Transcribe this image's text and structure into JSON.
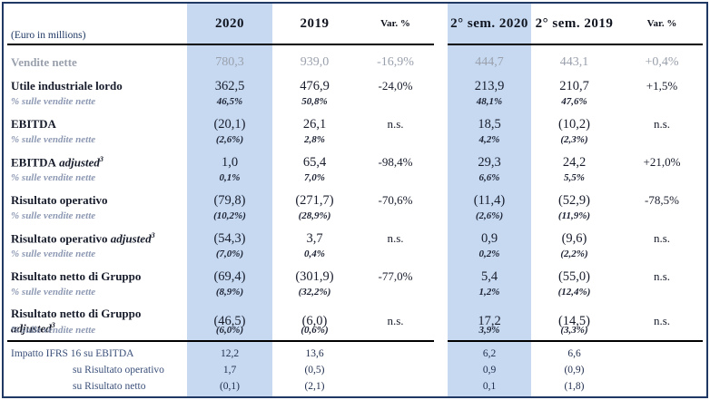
{
  "unit_label": "(Euro in millions)",
  "columns": [
    "2020",
    "2019",
    "Var. %",
    "2° sem. 2020",
    "2° sem. 2019",
    "Var. %"
  ],
  "colors": {
    "highlight_band": "#c6d9f1",
    "outer_border": "#1f3864",
    "rule_line": "#000000",
    "gray_row_text": "#9aa1ad",
    "pct_label_text": "#8d99b3",
    "ifrs_text": "#3a4f79",
    "main_text": "#181d2c"
  },
  "rows": [
    {
      "kind": "gray",
      "label": "Vendite nette",
      "values": [
        "780,3",
        "939,0",
        "-16,9%",
        "444,7",
        "443,1",
        "+0,4%"
      ]
    },
    {
      "kind": "main",
      "label": "Utile industriale lordo",
      "values": [
        "362,5",
        "476,9",
        "-24,0%",
        "213,9",
        "210,7",
        "+1,5%"
      ]
    },
    {
      "kind": "pct",
      "label": "% sulle vendite nette",
      "values": [
        "46,5%",
        "50,8%",
        "",
        "48,1%",
        "47,6%",
        ""
      ]
    },
    {
      "kind": "main",
      "label": "EBITDA",
      "values": [
        "(20,1)",
        "26,1",
        "n.s.",
        "18,5",
        "(10,2)",
        "n.s."
      ]
    },
    {
      "kind": "pct",
      "label": "% sulle vendite nette",
      "values": [
        "(2,6%)",
        "2,8%",
        "",
        "4,2%",
        "(2,3%)",
        ""
      ]
    },
    {
      "kind": "main",
      "label": "EBITDA",
      "italic_suffix": "adjusted",
      "sup": "3",
      "values": [
        "1,0",
        "65,4",
        "-98,4%",
        "29,3",
        "24,2",
        "+21,0%"
      ]
    },
    {
      "kind": "pct",
      "label": "% sulle vendite nette",
      "values": [
        "0,1%",
        "7,0%",
        "",
        "6,6%",
        "5,5%",
        ""
      ]
    },
    {
      "kind": "main",
      "label": "Risultato operativo",
      "values": [
        "(79,8)",
        "(271,7)",
        "-70,6%",
        "(11,4)",
        "(52,9)",
        "-78,5%"
      ]
    },
    {
      "kind": "pct",
      "label": "% sulle vendite nette",
      "values": [
        "(10,2%)",
        "(28,9%)",
        "",
        "(2,6%)",
        "(11,9%)",
        ""
      ]
    },
    {
      "kind": "main",
      "label": "Risultato operativo",
      "italic_suffix": "adjusted",
      "sup": "3",
      "values": [
        "(54,3)",
        "3,7",
        "n.s.",
        "0,9",
        "(9,6)",
        "n.s."
      ]
    },
    {
      "kind": "pct",
      "label": "% sulle vendite nette",
      "values": [
        "(7,0%)",
        "0,4%",
        "",
        "0,2%",
        "(2,2%)",
        ""
      ]
    },
    {
      "kind": "main",
      "label": "Risultato netto di Gruppo",
      "values": [
        "(69,4)",
        "(301,9)",
        "-77,0%",
        "5,4",
        "(55,0)",
        "n.s."
      ]
    },
    {
      "kind": "pct",
      "label": "% sulle vendite nette",
      "values": [
        "(8,9%)",
        "(32,2%)",
        "",
        "1,2%",
        "(12,4%)",
        ""
      ]
    },
    {
      "kind": "main",
      "label": "Risultato netto di Gruppo",
      "italic_suffix": "adjusted",
      "sup": "3",
      "values": [
        "(46,5)",
        "(6,0)",
        "n.s.",
        "17,2",
        "(14,5)",
        "n.s."
      ]
    },
    {
      "kind": "pct",
      "label": "% sulle vendite nette",
      "values": [
        "(6,0%)",
        "(0,6%)",
        "",
        "3,9%",
        "(3,3%)",
        ""
      ]
    }
  ],
  "ifrs_rows": [
    {
      "label": "Impatto IFRS 16 su EBITDA",
      "indent": false,
      "values": [
        "12,2",
        "13,6",
        "",
        "6,2",
        "6,6",
        ""
      ]
    },
    {
      "label": "su Risultato operativo",
      "indent": true,
      "values": [
        "1,7",
        "(0,5)",
        "",
        "0,9",
        "(0,9)",
        ""
      ]
    },
    {
      "label": "su Risultato netto",
      "indent": true,
      "values": [
        "(0,1)",
        "(2,1)",
        "",
        "0,1",
        "(1,8)",
        ""
      ]
    }
  ]
}
